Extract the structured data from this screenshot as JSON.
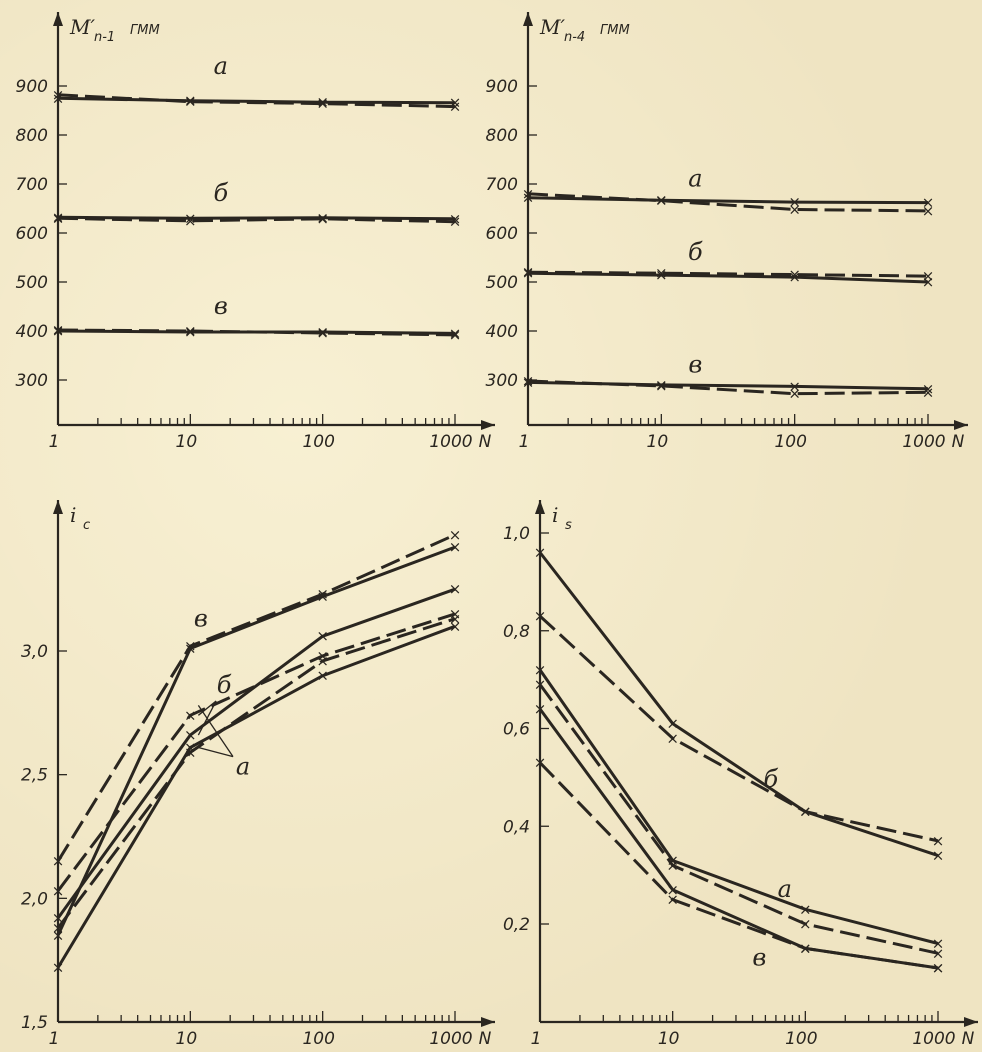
{
  "chart_data": [
    {
      "id": "p1",
      "type": "line",
      "xscale": "log",
      "xlim": [
        1,
        1000
      ],
      "ylim": [
        250,
        1000
      ],
      "xticks": [
        1,
        10,
        100,
        1000
      ],
      "xtick_labels": [
        "1",
        "10",
        "100",
        "1000"
      ],
      "xlabel": "N",
      "yticks": [
        300,
        400,
        500,
        600,
        700,
        800,
        900
      ],
      "ytick_labels": [
        "300",
        "400",
        "500",
        "600",
        "700",
        "800",
        "900"
      ],
      "ylabel_main": "M′",
      "ylabel_sub": "n-1",
      "ylabel_unit": "ГММ",
      "series": [
        {
          "x": [
            1,
            10,
            100,
            1000
          ],
          "y": [
            875,
            870,
            867,
            866
          ],
          "style": "solid"
        },
        {
          "x": [
            1,
            10,
            100,
            1000
          ],
          "y": [
            882,
            868,
            864,
            858
          ],
          "style": "dashed"
        },
        {
          "x": [
            1,
            10,
            100,
            1000
          ],
          "y": [
            632,
            630,
            631,
            629
          ],
          "style": "solid"
        },
        {
          "x": [
            1,
            10,
            100,
            1000
          ],
          "y": [
            630,
            625,
            629,
            623
          ],
          "style": "dashed"
        },
        {
          "x": [
            1,
            10,
            100,
            1000
          ],
          "y": [
            400,
            398,
            398,
            395
          ],
          "style": "solid"
        },
        {
          "x": [
            1,
            10,
            100,
            1000
          ],
          "y": [
            402,
            400,
            396,
            392
          ],
          "style": "dashed"
        }
      ],
      "curve_labels": [
        {
          "text": "а",
          "x": 17,
          "y": 925
        },
        {
          "text": "б",
          "x": 17,
          "y": 665
        },
        {
          "text": "в",
          "x": 17,
          "y": 435
        }
      ]
    },
    {
      "id": "p2",
      "type": "line",
      "xscale": "log",
      "xlim": [
        1,
        1000
      ],
      "ylim": [
        250,
        1000
      ],
      "xticks": [
        1,
        10,
        100,
        1000
      ],
      "xtick_labels": [
        "1",
        "10",
        "100",
        "1000"
      ],
      "xlabel": "N",
      "yticks": [
        300,
        400,
        500,
        600,
        700,
        800,
        900
      ],
      "ytick_labels": [
        "300",
        "400",
        "500",
        "600",
        "700",
        "800",
        "900"
      ],
      "ylabel_main": "M′",
      "ylabel_sub": "n-4",
      "ylabel_unit": "ГММ",
      "series": [
        {
          "x": [
            1,
            10,
            100,
            1000
          ],
          "y": [
            672,
            667,
            663,
            662
          ],
          "style": "solid"
        },
        {
          "x": [
            1,
            10,
            100,
            1000
          ],
          "y": [
            680,
            666,
            648,
            645
          ],
          "style": "dashed"
        },
        {
          "x": [
            1,
            10,
            100,
            1000
          ],
          "y": [
            518,
            514,
            510,
            500
          ],
          "style": "solid"
        },
        {
          "x": [
            1,
            10,
            100,
            1000
          ],
          "y": [
            520,
            518,
            515,
            512
          ],
          "style": "dashed"
        },
        {
          "x": [
            1,
            10,
            100,
            1000
          ],
          "y": [
            295,
            290,
            287,
            282
          ],
          "style": "solid"
        },
        {
          "x": [
            1,
            10,
            100,
            1000
          ],
          "y": [
            298,
            288,
            272,
            275
          ],
          "style": "dashed"
        }
      ],
      "curve_labels": [
        {
          "text": "а",
          "x": 18,
          "y": 695
        },
        {
          "text": "б",
          "x": 18,
          "y": 545
        },
        {
          "text": "в",
          "x": 18,
          "y": 315
        }
      ]
    },
    {
      "id": "p3",
      "type": "line",
      "xscale": "log",
      "xlim": [
        1,
        1000
      ],
      "ylim": [
        1.5,
        3.55
      ],
      "xticks": [
        1,
        10,
        100,
        1000
      ],
      "xtick_labels": [
        "1",
        "10",
        "100",
        "1000"
      ],
      "xlabel": "N",
      "yticks": [
        1.5,
        2.0,
        2.5,
        3.0
      ],
      "ytick_labels": [
        "1,5",
        "2,0",
        "2,5",
        "3,0"
      ],
      "ylabel_main": "i",
      "ylabel_sub": "c",
      "ylabel_unit": "",
      "series": [
        {
          "x": [
            1,
            10,
            100,
            1000
          ],
          "y": [
            1.85,
            3.01,
            3.22,
            3.42
          ],
          "style": "solid"
        },
        {
          "x": [
            1,
            10,
            100,
            1000
          ],
          "y": [
            2.15,
            3.02,
            3.23,
            3.47
          ],
          "style": "dashed"
        },
        {
          "x": [
            1,
            10,
            100,
            1000
          ],
          "y": [
            1.92,
            2.66,
            3.06,
            3.25
          ],
          "style": "solid"
        },
        {
          "x": [
            1,
            10,
            100,
            1000
          ],
          "y": [
            2.03,
            2.74,
            2.98,
            3.15
          ],
          "style": "dashed"
        },
        {
          "x": [
            1,
            10,
            100,
            1000
          ],
          "y": [
            1.72,
            2.61,
            2.9,
            3.1
          ],
          "style": "solid"
        },
        {
          "x": [
            1,
            10,
            100,
            1000
          ],
          "y": [
            1.88,
            2.59,
            2.96,
            3.13
          ],
          "style": "dashed"
        }
      ],
      "curve_labels": [
        {
          "text": "в",
          "x": 12,
          "y": 3.1
        },
        {
          "text": "б",
          "x": 18,
          "y": 2.83
        },
        {
          "text": "а",
          "x": 25,
          "y": 2.5
        }
      ]
    },
    {
      "id": "p4",
      "type": "line",
      "xscale": "log",
      "xlim": [
        1,
        1000
      ],
      "ylim": [
        0.0,
        1.04
      ],
      "xticks": [
        1,
        10,
        100,
        1000
      ],
      "xtick_labels": [
        "1",
        "10",
        "100",
        "1000"
      ],
      "xlabel": "N",
      "yticks": [
        0.2,
        0.4,
        0.6,
        0.8,
        1.0
      ],
      "ytick_labels": [
        "0,2",
        "0,4",
        "0,6",
        "0,8",
        "1,0"
      ],
      "ylabel_main": "i",
      "ylabel_sub": "s",
      "ylabel_unit": "",
      "series": [
        {
          "x": [
            1,
            10,
            100,
            1000
          ],
          "y": [
            0.96,
            0.61,
            0.43,
            0.34
          ],
          "style": "solid"
        },
        {
          "x": [
            1,
            10,
            100,
            1000
          ],
          "y": [
            0.83,
            0.58,
            0.43,
            0.37
          ],
          "style": "dashed"
        },
        {
          "x": [
            1,
            10,
            100,
            1000
          ],
          "y": [
            0.72,
            0.33,
            0.23,
            0.16
          ],
          "style": "solid"
        },
        {
          "x": [
            1,
            10,
            100,
            1000
          ],
          "y": [
            0.69,
            0.32,
            0.2,
            0.14
          ],
          "style": "dashed"
        },
        {
          "x": [
            1,
            10,
            100,
            1000
          ],
          "y": [
            0.64,
            0.27,
            0.15,
            0.11
          ],
          "style": "solid"
        },
        {
          "x": [
            1,
            10,
            100,
            1000
          ],
          "y": [
            0.53,
            0.25,
            0.15,
            0.11
          ],
          "style": "dashed"
        }
      ],
      "curve_labels": [
        {
          "text": "б",
          "x": 55,
          "y": 0.48
        },
        {
          "text": "а",
          "x": 70,
          "y": 0.255
        },
        {
          "text": "в",
          "x": 45,
          "y": 0.115
        }
      ]
    }
  ]
}
